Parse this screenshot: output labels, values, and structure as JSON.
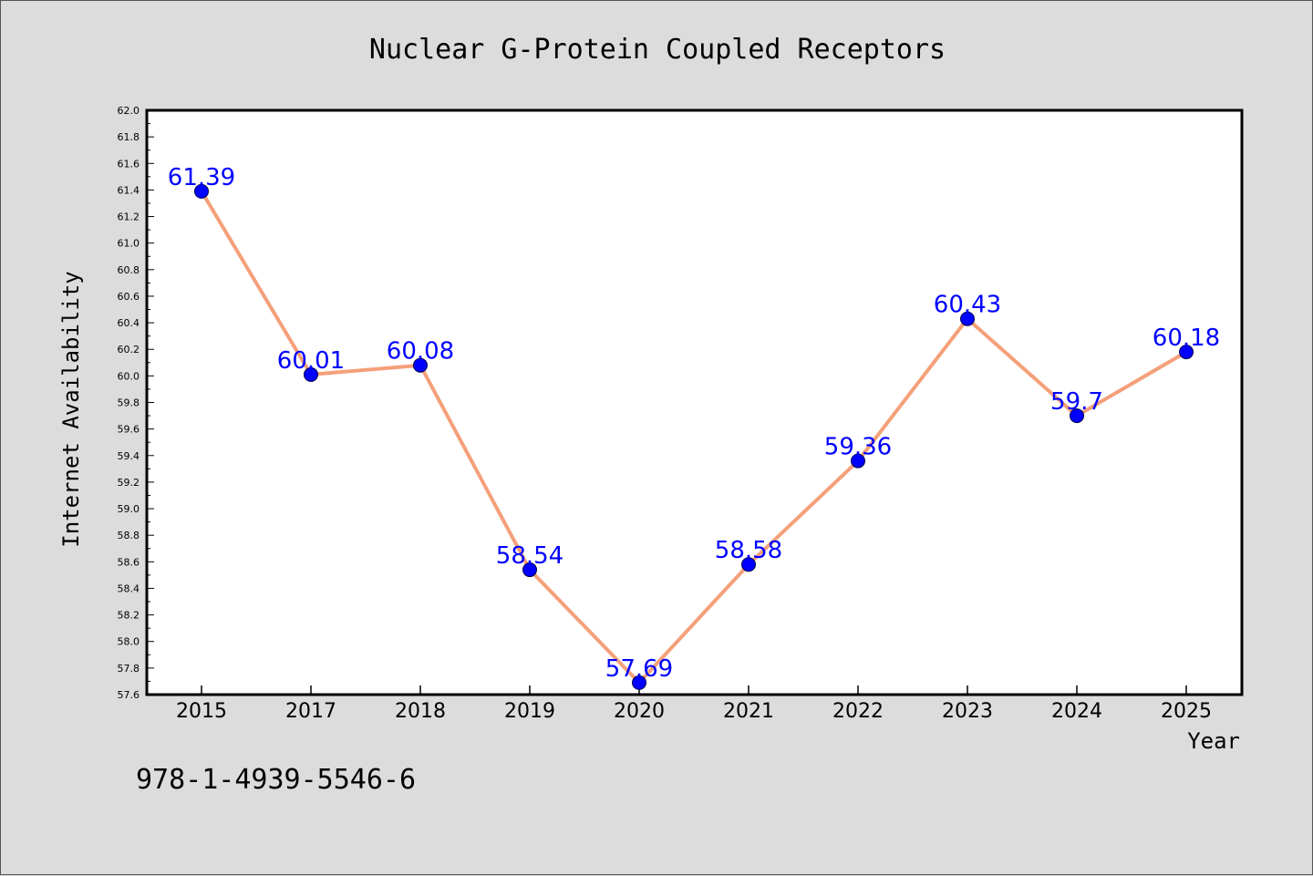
{
  "chart_data": {
    "type": "line",
    "title": "Nuclear G-Protein Coupled Receptors",
    "xlabel": "Year",
    "ylabel": "Internet Availability",
    "categories": [
      "2015",
      "2017",
      "2018",
      "2019",
      "2020",
      "2021",
      "2022",
      "2023",
      "2024",
      "2025"
    ],
    "series": [
      {
        "values": [
          61.39,
          60.01,
          60.08,
          58.54,
          57.69,
          58.58,
          59.36,
          60.43,
          59.7,
          60.18
        ],
        "labels": [
          "61.39",
          "60.01",
          "60.08",
          "58.54",
          "57.69",
          "58.58",
          "59.36",
          "60.43",
          "59.7",
          "60.18"
        ]
      }
    ],
    "ylim": [
      57.6,
      62.0
    ],
    "yticks": [
      "57.6",
      "57.8",
      "58.0",
      "58.2",
      "58.4",
      "58.6",
      "58.8",
      "59.0",
      "59.2",
      "59.4",
      "59.6",
      "59.8",
      "60.0",
      "60.2",
      "60.4",
      "60.6",
      "60.8",
      "61.0",
      "61.2",
      "61.4",
      "61.6",
      "61.8",
      "62.0"
    ],
    "grid": false,
    "colors": {
      "line": "#f4a07a",
      "marker": "#0000ff",
      "label": "#0000ff",
      "background": "#dcdcdc",
      "plot_background": "#ffffff"
    }
  },
  "footer": {
    "text": "978-1-4939-5546-6"
  }
}
